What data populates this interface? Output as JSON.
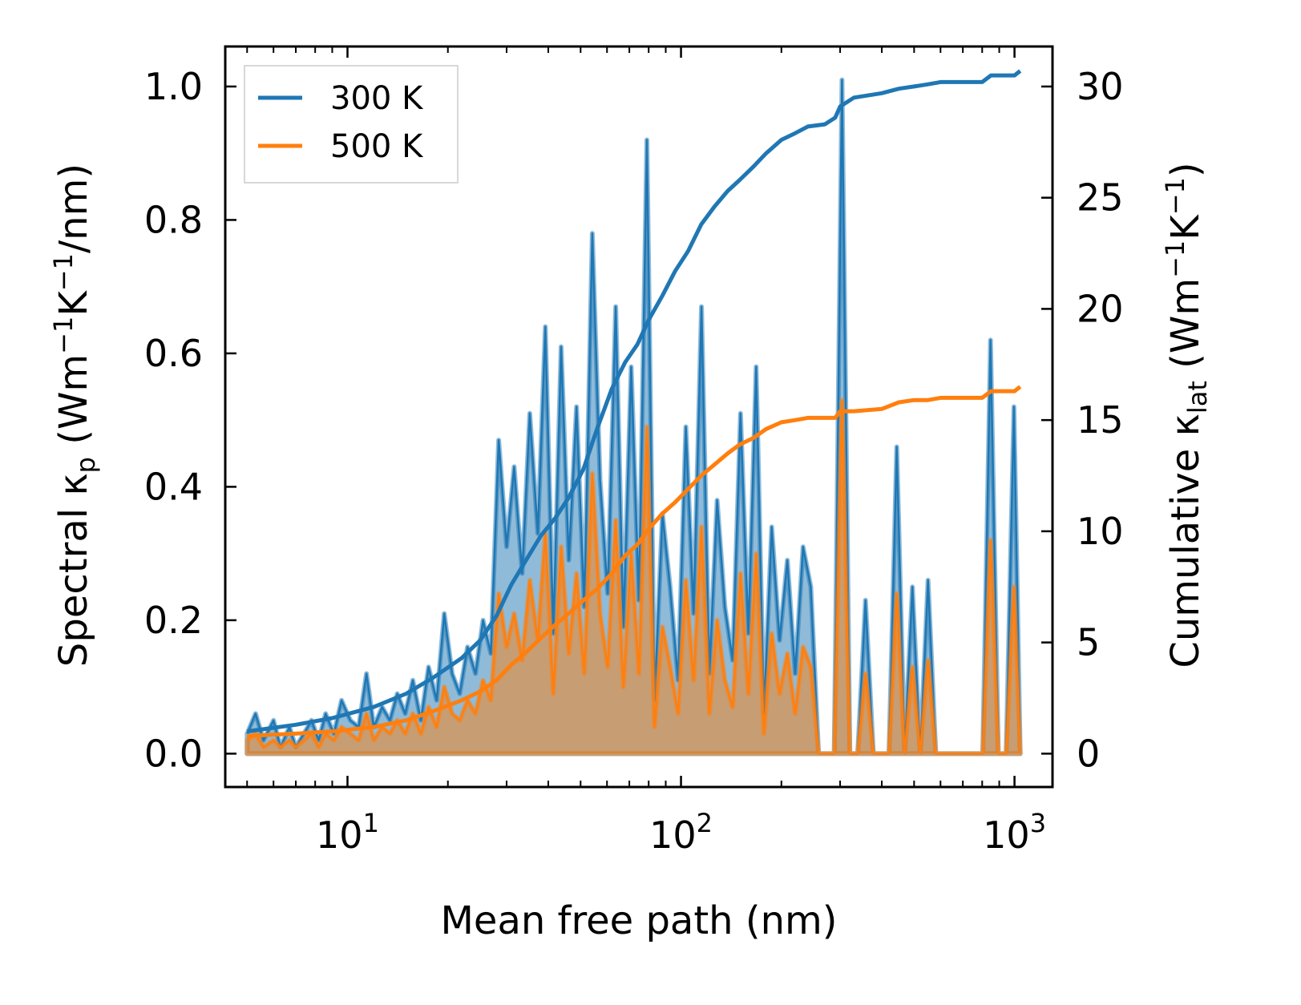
{
  "chart_data": {
    "type": "line",
    "x_scale": "log",
    "xlabel": "Mean free path (nm)",
    "ylabel_left": {
      "main": "Spectral κ",
      "sub": "p",
      "unit_open": " (Wm",
      "sup1": "−1",
      "mid": "K",
      "sup2": "−1",
      "unit_close": "/nm)"
    },
    "ylabel_right": {
      "main": "Cumulative κ",
      "sub": "lat",
      "unit_open": " (Wm",
      "sup1": "−1",
      "mid": "K",
      "sup2": "−1",
      "unit_close": ")"
    },
    "xlim": [
      4.3,
      1300
    ],
    "ylim_left": [
      -0.05,
      1.06
    ],
    "ylim_right": [
      -1.5,
      31.8
    ],
    "x_ticks": [
      {
        "value": 10,
        "base": "10",
        "exp": "1"
      },
      {
        "value": 100,
        "base": "10",
        "exp": "2"
      },
      {
        "value": 1000,
        "base": "10",
        "exp": "3"
      }
    ],
    "y_left_ticks": [
      {
        "value": 0.0,
        "label": "0.0"
      },
      {
        "value": 0.2,
        "label": "0.2"
      },
      {
        "value": 0.4,
        "label": "0.4"
      },
      {
        "value": 0.6,
        "label": "0.6"
      },
      {
        "value": 0.8,
        "label": "0.8"
      },
      {
        "value": 1.0,
        "label": "1.0"
      }
    ],
    "y_right_ticks": [
      {
        "value": 0,
        "label": "0"
      },
      {
        "value": 5,
        "label": "5"
      },
      {
        "value": 10,
        "label": "10"
      },
      {
        "value": 15,
        "label": "15"
      },
      {
        "value": 20,
        "label": "20"
      },
      {
        "value": 25,
        "label": "25"
      },
      {
        "value": 30,
        "label": "30"
      }
    ],
    "legend": {
      "position": "top-left",
      "entries": [
        {
          "label": "300 K",
          "color": "#1f77b4"
        },
        {
          "label": "500 K",
          "color": "#ff7f0e"
        }
      ]
    },
    "series": [
      {
        "name": "300 K",
        "color": "#1f77b4",
        "spectral_axis": "left",
        "spectral": {
          "x": [
            5.0,
            5.3,
            5.6,
            6.0,
            6.3,
            6.7,
            7.0,
            7.4,
            7.8,
            8.2,
            8.6,
            9.1,
            9.6,
            10.2,
            10.8,
            11.4,
            12.0,
            12.7,
            13.4,
            14.1,
            14.9,
            15.7,
            16.6,
            17.5,
            18.5,
            19.5,
            20.6,
            21.7,
            22.9,
            24.2,
            25.5,
            26.9,
            28.4,
            30.0,
            31.6,
            33.4,
            35.2,
            37.2,
            39.2,
            41.4,
            43.7,
            46.1,
            48.6,
            51.3,
            54.2,
            57.2,
            60.3,
            63.7,
            67.2,
            70.9,
            74.8,
            79.0,
            83.3,
            88.0,
            92.8,
            98.0,
            103.4,
            109.1,
            115.2,
            121.6,
            128.3,
            135.4,
            142.9,
            150.8,
            159.2,
            168.0,
            177.3,
            187.1,
            197.5,
            208.4,
            220.0,
            232.2,
            245.0,
            258.6,
            273.0,
            288.1,
            304.0,
            320.9,
            338.7,
            357.5,
            377.3,
            398.2,
            420.3,
            443.6,
            468.2,
            494.1,
            521.5,
            550.4,
            580.9,
            613.1,
            647.1,
            683.0,
            720.9,
            760.8,
            803.0,
            847.5,
            894.5,
            944.1,
            996.4,
            1040
          ],
          "y": [
            0.03,
            0.06,
            0.02,
            0.05,
            0.01,
            0.04,
            0.01,
            0.03,
            0.05,
            0.02,
            0.06,
            0.03,
            0.08,
            0.05,
            0.04,
            0.12,
            0.04,
            0.07,
            0.05,
            0.09,
            0.06,
            0.11,
            0.05,
            0.13,
            0.08,
            0.21,
            0.12,
            0.09,
            0.16,
            0.12,
            0.2,
            0.15,
            0.47,
            0.31,
            0.43,
            0.27,
            0.51,
            0.33,
            0.64,
            0.18,
            0.61,
            0.29,
            0.52,
            0.22,
            0.78,
            0.41,
            0.24,
            0.67,
            0.19,
            0.58,
            0.23,
            0.92,
            0.08,
            0.36,
            0.25,
            0.11,
            0.49,
            0.21,
            0.67,
            0.12,
            0.38,
            0.22,
            0.14,
            0.51,
            0.18,
            0.58,
            0.06,
            0.34,
            0.17,
            0.29,
            0.12,
            0.31,
            0.25,
            0.0,
            0.0,
            0.0,
            1.01,
            0.0,
            0.0,
            0.23,
            0.0,
            0.0,
            0.0,
            0.46,
            0.0,
            0.25,
            0.0,
            0.26,
            0.0,
            0.0,
            0.0,
            0.0,
            0.0,
            0.0,
            0.0,
            0.62,
            0.0,
            0.0,
            0.52,
            0.0
          ]
        },
        "cumulative": {
          "x": [
            5.0,
            7.0,
            9.0,
            12.0,
            15.0,
            18.0,
            22.0,
            25.0,
            28.0,
            31.0,
            34.0,
            38.0,
            42.0,
            46.0,
            51.0,
            56.0,
            62.0,
            68.0,
            74.0,
            80.0,
            88.0,
            96.0,
            105.0,
            115.0,
            126.0,
            138.0,
            150.0,
            165.0,
            180.0,
            200.0,
            220.0,
            240.0,
            270.0,
            290.0,
            300.0,
            330.0,
            400.0,
            450.0,
            500.0,
            550.0,
            600.0,
            700.0,
            800.0,
            850.0,
            1000.0,
            1040.0
          ],
          "y": [
            1.0,
            1.3,
            1.6,
            2.1,
            2.7,
            3.4,
            4.3,
            5.1,
            6.2,
            7.6,
            8.6,
            9.8,
            10.6,
            11.5,
            12.8,
            14.6,
            16.4,
            17.6,
            18.4,
            19.5,
            20.6,
            21.7,
            22.6,
            23.8,
            24.6,
            25.3,
            25.8,
            26.4,
            27.0,
            27.6,
            27.9,
            28.2,
            28.3,
            28.6,
            29.1,
            29.5,
            29.7,
            29.9,
            30.0,
            30.1,
            30.2,
            30.2,
            30.2,
            30.5,
            30.5,
            30.7
          ]
        }
      },
      {
        "name": "500 K",
        "color": "#ff7f0e",
        "spectral_axis": "left",
        "spectral": {
          "x": [
            5.0,
            5.3,
            5.6,
            6.0,
            6.3,
            6.7,
            7.0,
            7.4,
            7.8,
            8.2,
            8.6,
            9.1,
            9.6,
            10.2,
            10.8,
            11.4,
            12.0,
            12.7,
            13.4,
            14.1,
            14.9,
            15.7,
            16.6,
            17.5,
            18.5,
            19.5,
            20.6,
            21.7,
            22.9,
            24.2,
            25.5,
            26.9,
            28.4,
            30.0,
            31.6,
            33.4,
            35.2,
            37.2,
            39.2,
            41.4,
            43.7,
            46.1,
            48.6,
            51.3,
            54.2,
            57.2,
            60.3,
            63.7,
            67.2,
            70.9,
            74.8,
            79.0,
            83.3,
            88.0,
            92.8,
            98.0,
            103.4,
            109.1,
            115.2,
            121.6,
            128.3,
            135.4,
            142.9,
            150.8,
            159.2,
            168.0,
            177.3,
            187.1,
            197.5,
            208.4,
            220.0,
            232.2,
            245.0,
            258.6,
            273.0,
            288.1,
            304.0,
            320.9,
            338.7,
            357.5,
            377.3,
            398.2,
            420.3,
            443.6,
            468.2,
            494.1,
            521.5,
            550.4,
            580.9,
            613.1,
            647.1,
            683.0,
            720.9,
            760.8,
            803.0,
            847.5,
            894.5,
            944.1,
            996.4,
            1040
          ],
          "y": [
            0.02,
            0.03,
            0.01,
            0.02,
            0.01,
            0.02,
            0.01,
            0.02,
            0.03,
            0.01,
            0.03,
            0.02,
            0.04,
            0.03,
            0.02,
            0.06,
            0.02,
            0.04,
            0.03,
            0.05,
            0.03,
            0.06,
            0.03,
            0.07,
            0.04,
            0.1,
            0.06,
            0.05,
            0.08,
            0.06,
            0.11,
            0.08,
            0.24,
            0.16,
            0.21,
            0.14,
            0.26,
            0.17,
            0.33,
            0.09,
            0.31,
            0.15,
            0.27,
            0.12,
            0.42,
            0.21,
            0.13,
            0.35,
            0.1,
            0.3,
            0.12,
            0.49,
            0.04,
            0.19,
            0.13,
            0.06,
            0.26,
            0.11,
            0.34,
            0.06,
            0.2,
            0.11,
            0.07,
            0.27,
            0.09,
            0.3,
            0.03,
            0.18,
            0.09,
            0.15,
            0.06,
            0.16,
            0.13,
            0.0,
            0.0,
            0.0,
            0.53,
            0.0,
            0.0,
            0.12,
            0.0,
            0.0,
            0.0,
            0.24,
            0.0,
            0.13,
            0.0,
            0.14,
            0.0,
            0.0,
            0.0,
            0.0,
            0.0,
            0.0,
            0.0,
            0.32,
            0.0,
            0.0,
            0.25,
            0.0
          ]
        },
        "cumulative": {
          "x": [
            5.0,
            7.0,
            9.0,
            12.0,
            15.0,
            18.0,
            22.0,
            25.0,
            28.0,
            31.0,
            34.0,
            38.0,
            42.0,
            46.0,
            51.0,
            56.0,
            62.0,
            68.0,
            74.0,
            80.0,
            88.0,
            96.0,
            105.0,
            115.0,
            126.0,
            138.0,
            150.0,
            165.0,
            180.0,
            200.0,
            220.0,
            240.0,
            270.0,
            290.0,
            300.0,
            330.0,
            400.0,
            450.0,
            500.0,
            550.0,
            600.0,
            700.0,
            800.0,
            850.0,
            1000.0,
            1040.0
          ],
          "y": [
            0.8,
            0.9,
            1.0,
            1.2,
            1.5,
            1.9,
            2.4,
            2.8,
            3.3,
            4.0,
            4.5,
            5.2,
            5.8,
            6.3,
            6.9,
            7.4,
            8.1,
            8.9,
            9.4,
            10.1,
            10.8,
            11.3,
            11.9,
            12.5,
            13.0,
            13.5,
            13.9,
            14.2,
            14.6,
            14.9,
            15.0,
            15.1,
            15.1,
            15.1,
            15.4,
            15.4,
            15.5,
            15.8,
            15.9,
            15.9,
            16.0,
            16.0,
            16.0,
            16.3,
            16.3,
            16.5
          ]
        }
      }
    ]
  }
}
